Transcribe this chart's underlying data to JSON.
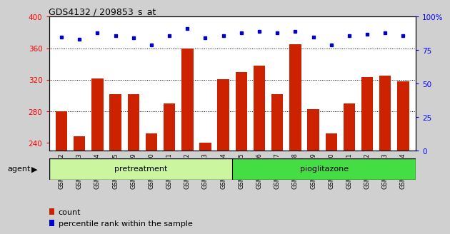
{
  "title": "GDS4132 / 209853_s_at",
  "samples": [
    "GSM201542",
    "GSM201543",
    "GSM201544",
    "GSM201545",
    "GSM201829",
    "GSM201830",
    "GSM201831",
    "GSM201832",
    "GSM201833",
    "GSM201834",
    "GSM201835",
    "GSM201836",
    "GSM201837",
    "GSM201838",
    "GSM201839",
    "GSM201840",
    "GSM201841",
    "GSM201842",
    "GSM201843",
    "GSM201844"
  ],
  "count_values": [
    280,
    248,
    322,
    302,
    302,
    252,
    290,
    360,
    240,
    321,
    330,
    338,
    302,
    365,
    283,
    252,
    290,
    323,
    325,
    318
  ],
  "percentile_values": [
    85,
    83,
    88,
    86,
    84,
    79,
    86,
    91,
    84,
    86,
    88,
    89,
    88,
    89,
    85,
    79,
    86,
    87,
    88,
    86
  ],
  "group1_label": "pretreatment",
  "group1_count": 10,
  "group2_label": "pioglitazone",
  "group2_count": 10,
  "group1_color": "#ccf5a0",
  "group2_color": "#44dd44",
  "bar_color": "#cc2200",
  "dot_color": "#0000cc",
  "ylim_left": [
    230,
    400
  ],
  "ylim_right": [
    0,
    100
  ],
  "yticks_left": [
    240,
    280,
    320,
    360,
    400
  ],
  "yticks_right": [
    0,
    25,
    50,
    75,
    100
  ],
  "grid_values": [
    280,
    320,
    360
  ],
  "agent_label": "agent",
  "legend_count": "count",
  "legend_pct": "percentile rank within the sample",
  "bg_color": "#d0d0d0",
  "plot_bg_color": "#ffffff"
}
